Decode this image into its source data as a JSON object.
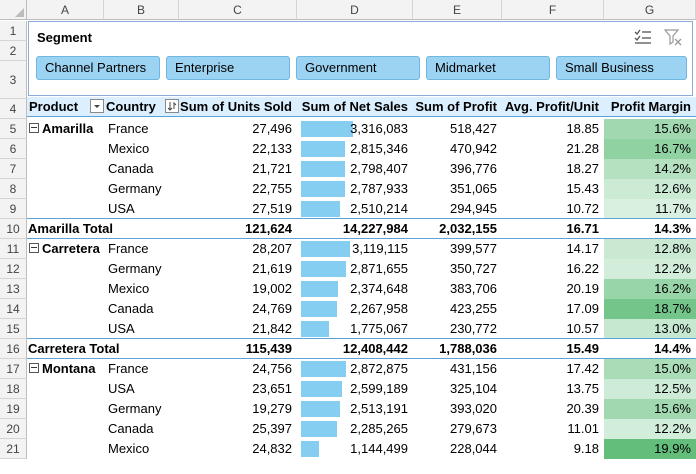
{
  "columns": [
    "A",
    "B",
    "C",
    "D",
    "E",
    "F",
    "G"
  ],
  "rows": [
    "1",
    "2",
    "3",
    "4",
    "5",
    "6",
    "7",
    "8",
    "9",
    "10",
    "11",
    "12",
    "13",
    "14",
    "15",
    "16",
    "17",
    "18",
    "19",
    "20",
    "21"
  ],
  "slicer": {
    "title": "Segment",
    "items": [
      "Channel Partners",
      "Enterprise",
      "Government",
      "Midmarket",
      "Small Business"
    ],
    "icons": [
      "multi-select-icon",
      "clear-filter-icon"
    ]
  },
  "headers": {
    "product": "Product",
    "country": "Country",
    "units": "Sum of Units Sold",
    "net_sales": "Sum of Net Sales",
    "profit": "Sum of Profit",
    "avg_profit": "Avg. Profit/Unit",
    "margin": "Profit Margin"
  },
  "groups": [
    {
      "product": "Amarilla",
      "rows": [
        {
          "country": "France",
          "units": "27,496",
          "sales": "3,316,083",
          "sales_v": 3316083,
          "profit": "518,427",
          "avg": "18.85",
          "margin": "15.6%",
          "margin_v": 15.6
        },
        {
          "country": "Mexico",
          "units": "22,133",
          "sales": "2,815,346",
          "sales_v": 2815346,
          "profit": "470,942",
          "avg": "21.28",
          "margin": "16.7%",
          "margin_v": 16.7
        },
        {
          "country": "Canada",
          "units": "21,721",
          "sales": "2,798,407",
          "sales_v": 2798407,
          "profit": "396,776",
          "avg": "18.27",
          "margin": "14.2%",
          "margin_v": 14.2
        },
        {
          "country": "Germany",
          "units": "22,755",
          "sales": "2,787,933",
          "sales_v": 2787933,
          "profit": "351,065",
          "avg": "15.43",
          "margin": "12.6%",
          "margin_v": 12.6
        },
        {
          "country": "USA",
          "units": "27,519",
          "sales": "2,510,214",
          "sales_v": 2510214,
          "profit": "294,945",
          "avg": "10.72",
          "margin": "11.7%",
          "margin_v": 11.7
        }
      ],
      "total": {
        "label": "Amarilla Total",
        "units": "121,624",
        "sales": "14,227,984",
        "profit": "2,032,155",
        "avg": "16.71",
        "margin": "14.3%"
      }
    },
    {
      "product": "Carretera",
      "rows": [
        {
          "country": "France",
          "units": "28,207",
          "sales": "3,119,115",
          "sales_v": 3119115,
          "profit": "399,577",
          "avg": "14.17",
          "margin": "12.8%",
          "margin_v": 12.8
        },
        {
          "country": "Germany",
          "units": "21,619",
          "sales": "2,871,655",
          "sales_v": 2871655,
          "profit": "350,727",
          "avg": "16.22",
          "margin": "12.2%",
          "margin_v": 12.2
        },
        {
          "country": "Mexico",
          "units": "19,002",
          "sales": "2,374,648",
          "sales_v": 2374648,
          "profit": "383,706",
          "avg": "20.19",
          "margin": "16.2%",
          "margin_v": 16.2
        },
        {
          "country": "Canada",
          "units": "24,769",
          "sales": "2,267,958",
          "sales_v": 2267958,
          "profit": "423,255",
          "avg": "17.09",
          "margin": "18.7%",
          "margin_v": 18.7
        },
        {
          "country": "USA",
          "units": "21,842",
          "sales": "1,775,067",
          "sales_v": 1775067,
          "profit": "230,772",
          "avg": "10.57",
          "margin": "13.0%",
          "margin_v": 13.0
        }
      ],
      "total": {
        "label": "Carretera Total",
        "units": "115,439",
        "sales": "12,408,442",
        "profit": "1,788,036",
        "avg": "15.49",
        "margin": "14.4%"
      }
    },
    {
      "product": "Montana",
      "rows": [
        {
          "country": "France",
          "units": "24,756",
          "sales": "2,872,875",
          "sales_v": 2872875,
          "profit": "431,156",
          "avg": "17.42",
          "margin": "15.0%",
          "margin_v": 15.0
        },
        {
          "country": "USA",
          "units": "23,651",
          "sales": "2,599,189",
          "sales_v": 2599189,
          "profit": "325,104",
          "avg": "13.75",
          "margin": "12.5%",
          "margin_v": 12.5
        },
        {
          "country": "Germany",
          "units": "19,279",
          "sales": "2,513,191",
          "sales_v": 2513191,
          "profit": "393,020",
          "avg": "20.39",
          "margin": "15.6%",
          "margin_v": 15.6
        },
        {
          "country": "Canada",
          "units": "25,397",
          "sales": "2,285,265",
          "sales_v": 2285265,
          "profit": "279,673",
          "avg": "11.01",
          "margin": "12.2%",
          "margin_v": 12.2
        },
        {
          "country": "Mexico",
          "units": "24,832",
          "sales": "1,144,499",
          "sales_v": 1144499,
          "profit": "228,044",
          "avg": "9.18",
          "margin": "19.9%",
          "margin_v": 19.9
        }
      ],
      "total": null
    }
  ],
  "colors": {
    "header_bg": "#dcefff",
    "databar": "#86cdf2",
    "slicer_btn": "#9dd3f2",
    "margin_low": "#d9f0e0",
    "margin_high": "#63be7b"
  }
}
